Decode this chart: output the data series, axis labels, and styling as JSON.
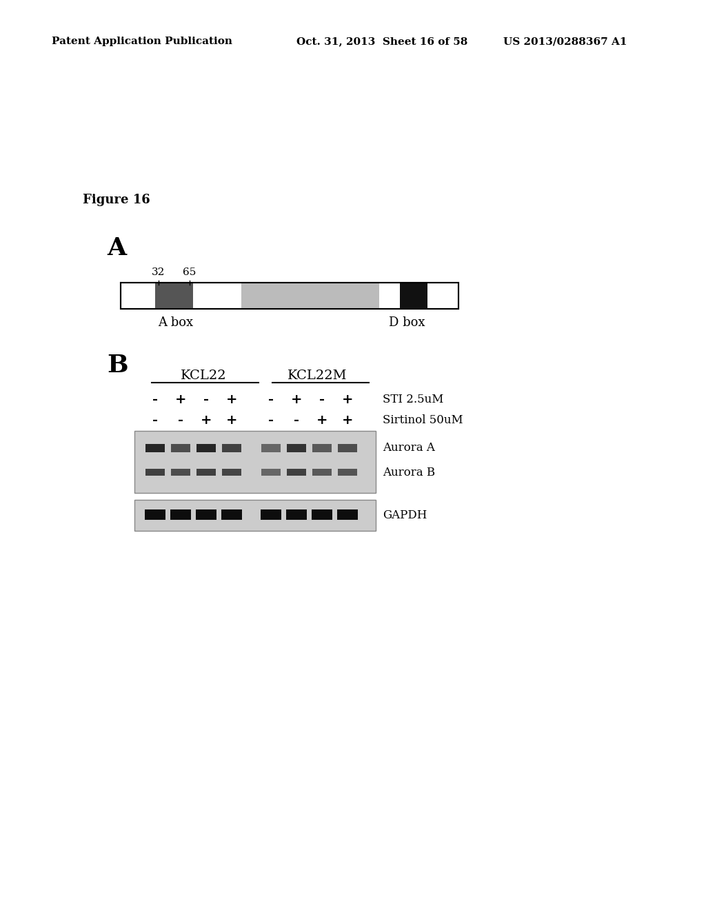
{
  "bg_color": "#ffffff",
  "header_left": "Patent Application Publication",
  "header_mid": "Oct. 31, 2013  Sheet 16 of 58",
  "header_right": "US 2013/0288367 A1",
  "figure_label": "Figure 16",
  "panel_A_label": "A",
  "panel_B_label": "B",
  "bar_label_32": "32",
  "bar_label_65": "65",
  "abox_label": "A box",
  "dbox_label": "D box",
  "kcl22_label": "KCL22",
  "kcl22m_label": "KCL22M",
  "sti_label": "STI 2.5uM",
  "sirtinol_label": "Sirtinol 50uM",
  "aurora_a_label": "Aurora A",
  "aurora_b_label": "Aurora B",
  "gapdh_label": "GAPDH",
  "sti_row": [
    "-",
    "+",
    "-",
    "+",
    "-",
    "+",
    "-",
    "+"
  ],
  "sirtinol_row": [
    "-",
    "-",
    "+",
    "+",
    "-",
    "-",
    "+",
    "+"
  ]
}
